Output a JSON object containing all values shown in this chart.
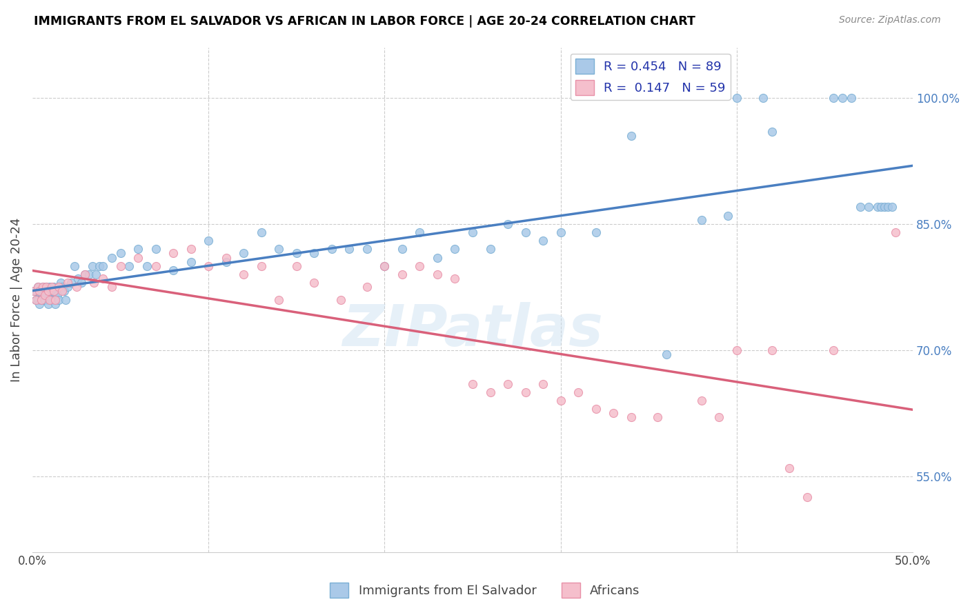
{
  "title": "IMMIGRANTS FROM EL SALVADOR VS AFRICAN IN LABOR FORCE | AGE 20-24 CORRELATION CHART",
  "source": "Source: ZipAtlas.com",
  "ylabel": "In Labor Force | Age 20-24",
  "xlim": [
    0.0,
    0.5
  ],
  "ylim": [
    0.46,
    1.06
  ],
  "x_ticks": [
    0.0,
    0.1,
    0.2,
    0.3,
    0.4,
    0.5
  ],
  "x_tick_labels": [
    "0.0%",
    "",
    "",
    "",
    "",
    "50.0%"
  ],
  "y_tick_labels_right": [
    "100.0%",
    "85.0%",
    "70.0%",
    "55.0%"
  ],
  "y_tick_vals_right": [
    1.0,
    0.85,
    0.7,
    0.55
  ],
  "blue_R": 0.454,
  "blue_N": 89,
  "pink_R": 0.147,
  "pink_N": 59,
  "blue_color": "#aac9e8",
  "blue_edge": "#7aafd4",
  "pink_color": "#f5bfcc",
  "pink_edge": "#e890a8",
  "blue_line_color": "#4a7fc1",
  "pink_line_color": "#d9607a",
  "legend_text_color": "#2233aa",
  "blue_scatter_x": [
    0.001,
    0.002,
    0.002,
    0.003,
    0.003,
    0.004,
    0.004,
    0.005,
    0.005,
    0.006,
    0.006,
    0.007,
    0.007,
    0.008,
    0.008,
    0.009,
    0.009,
    0.01,
    0.01,
    0.011,
    0.011,
    0.012,
    0.012,
    0.013,
    0.013,
    0.014,
    0.015,
    0.016,
    0.017,
    0.018,
    0.019,
    0.02,
    0.022,
    0.024,
    0.026,
    0.028,
    0.03,
    0.032,
    0.034,
    0.036,
    0.038,
    0.04,
    0.045,
    0.05,
    0.055,
    0.06,
    0.065,
    0.07,
    0.08,
    0.09,
    0.1,
    0.11,
    0.12,
    0.13,
    0.14,
    0.15,
    0.16,
    0.17,
    0.18,
    0.19,
    0.2,
    0.21,
    0.22,
    0.23,
    0.24,
    0.25,
    0.26,
    0.27,
    0.28,
    0.29,
    0.3,
    0.32,
    0.34,
    0.36,
    0.38,
    0.395,
    0.4,
    0.415,
    0.42,
    0.455,
    0.46,
    0.465,
    0.47,
    0.475,
    0.48,
    0.482,
    0.484,
    0.486,
    0.488
  ],
  "blue_scatter_y": [
    0.77,
    0.77,
    0.76,
    0.775,
    0.76,
    0.77,
    0.755,
    0.77,
    0.76,
    0.775,
    0.765,
    0.76,
    0.77,
    0.765,
    0.775,
    0.76,
    0.755,
    0.775,
    0.765,
    0.76,
    0.77,
    0.775,
    0.76,
    0.77,
    0.755,
    0.765,
    0.76,
    0.78,
    0.775,
    0.77,
    0.76,
    0.775,
    0.78,
    0.8,
    0.785,
    0.78,
    0.79,
    0.79,
    0.8,
    0.79,
    0.8,
    0.8,
    0.81,
    0.815,
    0.8,
    0.82,
    0.8,
    0.82,
    0.795,
    0.805,
    0.83,
    0.805,
    0.815,
    0.84,
    0.82,
    0.815,
    0.815,
    0.82,
    0.82,
    0.82,
    0.8,
    0.82,
    0.84,
    0.81,
    0.82,
    0.84,
    0.82,
    0.85,
    0.84,
    0.83,
    0.84,
    0.84,
    0.955,
    0.695,
    0.855,
    0.86,
    1.0,
    1.0,
    0.96,
    1.0,
    1.0,
    1.0,
    0.87,
    0.87,
    0.87,
    0.87,
    0.87,
    0.87,
    0.87
  ],
  "pink_scatter_x": [
    0.001,
    0.002,
    0.003,
    0.004,
    0.005,
    0.006,
    0.007,
    0.008,
    0.009,
    0.01,
    0.011,
    0.012,
    0.013,
    0.015,
    0.017,
    0.02,
    0.025,
    0.03,
    0.035,
    0.04,
    0.045,
    0.05,
    0.06,
    0.07,
    0.08,
    0.09,
    0.1,
    0.11,
    0.12,
    0.13,
    0.14,
    0.15,
    0.16,
    0.175,
    0.19,
    0.2,
    0.21,
    0.22,
    0.23,
    0.24,
    0.25,
    0.26,
    0.27,
    0.28,
    0.29,
    0.3,
    0.31,
    0.32,
    0.33,
    0.34,
    0.355,
    0.38,
    0.39,
    0.4,
    0.42,
    0.43,
    0.44,
    0.455,
    0.49
  ],
  "pink_scatter_y": [
    0.77,
    0.76,
    0.775,
    0.77,
    0.76,
    0.775,
    0.765,
    0.775,
    0.77,
    0.76,
    0.775,
    0.77,
    0.76,
    0.775,
    0.77,
    0.78,
    0.775,
    0.79,
    0.78,
    0.785,
    0.775,
    0.8,
    0.81,
    0.8,
    0.815,
    0.82,
    0.8,
    0.81,
    0.79,
    0.8,
    0.76,
    0.8,
    0.78,
    0.76,
    0.775,
    0.8,
    0.79,
    0.8,
    0.79,
    0.785,
    0.66,
    0.65,
    0.66,
    0.65,
    0.66,
    0.64,
    0.65,
    0.63,
    0.625,
    0.62,
    0.62,
    0.64,
    0.62,
    0.7,
    0.7,
    0.56,
    0.525,
    0.7,
    0.84
  ],
  "watermark_text": "ZIPatlas",
  "marker_size": 75
}
